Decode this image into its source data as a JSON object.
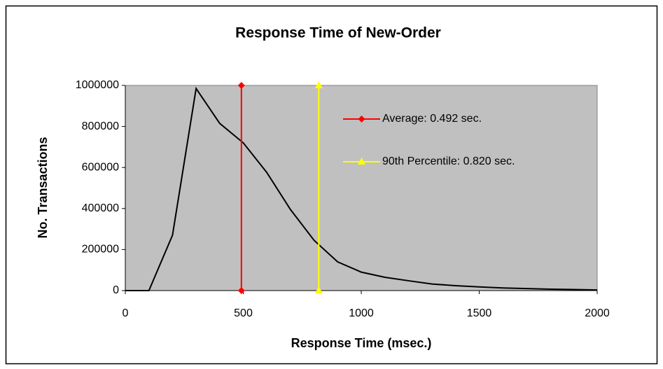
{
  "chart_data": {
    "type": "line",
    "title": "Response Time of New-Order",
    "x_label": "Response Time (msec.)",
    "y_label": "No. Transactions",
    "xlim": [
      0,
      2000
    ],
    "ylim": [
      0,
      1000000
    ],
    "xticks": [
      0,
      500,
      1000,
      1500,
      2000
    ],
    "yticks": [
      0,
      200000,
      400000,
      600000,
      800000,
      1000000
    ],
    "grid": false,
    "plot_background": "#c0c0c0",
    "legend": "inside-right",
    "series": [
      {
        "color": "#000000",
        "marker": "none",
        "x": [
          0,
          100,
          200,
          300,
          400,
          500,
          600,
          700,
          800,
          900,
          1000,
          1100,
          1200,
          1300,
          1400,
          1500,
          1600,
          1700,
          1800,
          1900,
          2000
        ],
        "values": [
          0,
          0,
          270000,
          985000,
          815000,
          720000,
          575000,
          395000,
          245000,
          140000,
          90000,
          65000,
          48000,
          32000,
          24000,
          18000,
          13000,
          10000,
          7000,
          5000,
          3000
        ]
      },
      {
        "name": "Average: 0.492 sec.",
        "color": "#ff0000",
        "marker": "diamond",
        "x": [
          492,
          492
        ],
        "values": [
          0,
          1000000
        ]
      },
      {
        "name": "90th Percentile: 0.820 sec.",
        "color": "#ffff00",
        "marker": "triangle",
        "x": [
          820,
          820
        ],
        "values": [
          0,
          1000000
        ]
      }
    ]
  }
}
